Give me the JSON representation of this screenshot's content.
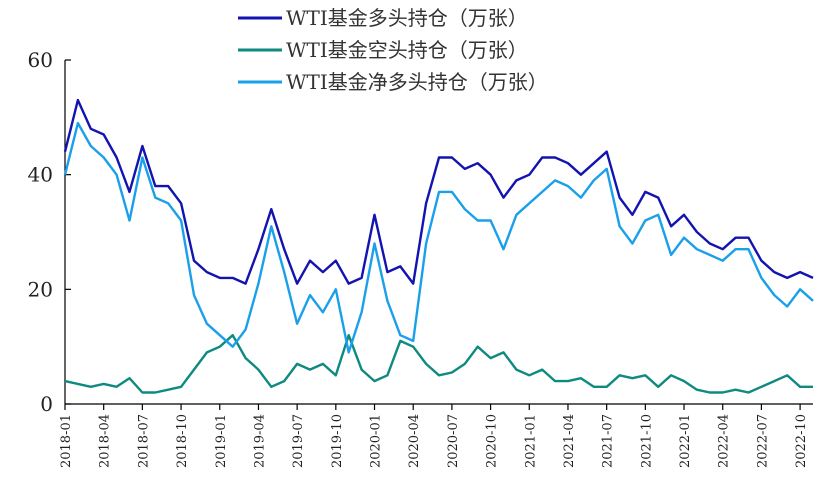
{
  "chart_data": {
    "type": "line",
    "title": "",
    "xlabel": "",
    "ylabel": "",
    "ylim": [
      0,
      60
    ],
    "yticks": [
      0,
      20,
      40,
      60
    ],
    "xlim": [
      "2018-01",
      "2022-11"
    ],
    "xticks": [
      "2018-01",
      "2018-04",
      "2018-07",
      "2018-10",
      "2019-01",
      "2019-04",
      "2019-07",
      "2019-10",
      "2020-01",
      "2020-04",
      "2020-07",
      "2020-10",
      "2021-01",
      "2021-04",
      "2021-07",
      "2021-10",
      "2022-01",
      "2022-04",
      "2022-07",
      "2022-10"
    ],
    "legend_position": "top-center",
    "grid": false,
    "series": [
      {
        "name": "WTI基金多头持仓（万张）",
        "color": "#1313b0",
        "points": [
          [
            "2018-01",
            44
          ],
          [
            "2018-02",
            53
          ],
          [
            "2018-03",
            48
          ],
          [
            "2018-04",
            47
          ],
          [
            "2018-05",
            43
          ],
          [
            "2018-06",
            37
          ],
          [
            "2018-07",
            45
          ],
          [
            "2018-08",
            38
          ],
          [
            "2018-09",
            38
          ],
          [
            "2018-10",
            35
          ],
          [
            "2018-11",
            25
          ],
          [
            "2018-12",
            23
          ],
          [
            "2019-01",
            22
          ],
          [
            "2019-02",
            22
          ],
          [
            "2019-03",
            21
          ],
          [
            "2019-04",
            27
          ],
          [
            "2019-05",
            34
          ],
          [
            "2019-06",
            27
          ],
          [
            "2019-07",
            21
          ],
          [
            "2019-08",
            25
          ],
          [
            "2019-09",
            23
          ],
          [
            "2019-10",
            25
          ],
          [
            "2019-11",
            21
          ],
          [
            "2019-12",
            22
          ],
          [
            "2020-01",
            33
          ],
          [
            "2020-02",
            23
          ],
          [
            "2020-03",
            24
          ],
          [
            "2020-04",
            21
          ],
          [
            "2020-05",
            35
          ],
          [
            "2020-06",
            43
          ],
          [
            "2020-07",
            43
          ],
          [
            "2020-08",
            41
          ],
          [
            "2020-09",
            42
          ],
          [
            "2020-10",
            40
          ],
          [
            "2020-11",
            36
          ],
          [
            "2020-12",
            39
          ],
          [
            "2021-01",
            40
          ],
          [
            "2021-02",
            43
          ],
          [
            "2021-03",
            43
          ],
          [
            "2021-04",
            42
          ],
          [
            "2021-05",
            40
          ],
          [
            "2021-06",
            42
          ],
          [
            "2021-07",
            44
          ],
          [
            "2021-08",
            36
          ],
          [
            "2021-09",
            33
          ],
          [
            "2021-10",
            37
          ],
          [
            "2021-11",
            36
          ],
          [
            "2021-12",
            31
          ],
          [
            "2022-01",
            33
          ],
          [
            "2022-02",
            30
          ],
          [
            "2022-03",
            28
          ],
          [
            "2022-04",
            27
          ],
          [
            "2022-05",
            29
          ],
          [
            "2022-06",
            29
          ],
          [
            "2022-07",
            25
          ],
          [
            "2022-08",
            23
          ],
          [
            "2022-09",
            22
          ],
          [
            "2022-10",
            23
          ],
          [
            "2022-11",
            22
          ]
        ]
      },
      {
        "name": "WTI基金空头持仓（万张）",
        "color": "#0f8a80",
        "points": [
          [
            "2018-01",
            4
          ],
          [
            "2018-02",
            3.5
          ],
          [
            "2018-03",
            3
          ],
          [
            "2018-04",
            3.5
          ],
          [
            "2018-05",
            3
          ],
          [
            "2018-06",
            4.5
          ],
          [
            "2018-07",
            2
          ],
          [
            "2018-08",
            2
          ],
          [
            "2018-09",
            2.5
          ],
          [
            "2018-10",
            3
          ],
          [
            "2018-11",
            6
          ],
          [
            "2018-12",
            9
          ],
          [
            "2019-01",
            10
          ],
          [
            "2019-02",
            12
          ],
          [
            "2019-03",
            8
          ],
          [
            "2019-04",
            6
          ],
          [
            "2019-05",
            3
          ],
          [
            "2019-06",
            4
          ],
          [
            "2019-07",
            7
          ],
          [
            "2019-08",
            6
          ],
          [
            "2019-09",
            7
          ],
          [
            "2019-10",
            5
          ],
          [
            "2019-11",
            12
          ],
          [
            "2019-12",
            6
          ],
          [
            "2020-01",
            4
          ],
          [
            "2020-02",
            5
          ],
          [
            "2020-03",
            11
          ],
          [
            "2020-04",
            10
          ],
          [
            "2020-05",
            7
          ],
          [
            "2020-06",
            5
          ],
          [
            "2020-07",
            5.5
          ],
          [
            "2020-08",
            7
          ],
          [
            "2020-09",
            10
          ],
          [
            "2020-10",
            8
          ],
          [
            "2020-11",
            9
          ],
          [
            "2020-12",
            6
          ],
          [
            "2021-01",
            5
          ],
          [
            "2021-02",
            6
          ],
          [
            "2021-03",
            4
          ],
          [
            "2021-04",
            4
          ],
          [
            "2021-05",
            4.5
          ],
          [
            "2021-06",
            3
          ],
          [
            "2021-07",
            3
          ],
          [
            "2021-08",
            5
          ],
          [
            "2021-09",
            4.5
          ],
          [
            "2021-10",
            5
          ],
          [
            "2021-11",
            3
          ],
          [
            "2021-12",
            5
          ],
          [
            "2022-01",
            4
          ],
          [
            "2022-02",
            2.5
          ],
          [
            "2022-03",
            2
          ],
          [
            "2022-04",
            2
          ],
          [
            "2022-05",
            2.5
          ],
          [
            "2022-06",
            2
          ],
          [
            "2022-07",
            3
          ],
          [
            "2022-08",
            4
          ],
          [
            "2022-09",
            5
          ],
          [
            "2022-10",
            3
          ],
          [
            "2022-11",
            3
          ]
        ]
      },
      {
        "name": "WTI基金净多头持仓（万张）",
        "color": "#1aa0ea",
        "points": [
          [
            "2018-01",
            40
          ],
          [
            "2018-02",
            49
          ],
          [
            "2018-03",
            45
          ],
          [
            "2018-04",
            43
          ],
          [
            "2018-05",
            40
          ],
          [
            "2018-06",
            32
          ],
          [
            "2018-07",
            43
          ],
          [
            "2018-08",
            36
          ],
          [
            "2018-09",
            35
          ],
          [
            "2018-10",
            32
          ],
          [
            "2018-11",
            19
          ],
          [
            "2018-12",
            14
          ],
          [
            "2019-01",
            12
          ],
          [
            "2019-02",
            10
          ],
          [
            "2019-03",
            13
          ],
          [
            "2019-04",
            21
          ],
          [
            "2019-05",
            31
          ],
          [
            "2019-06",
            23
          ],
          [
            "2019-07",
            14
          ],
          [
            "2019-08",
            19
          ],
          [
            "2019-09",
            16
          ],
          [
            "2019-10",
            20
          ],
          [
            "2019-11",
            9
          ],
          [
            "2019-12",
            16
          ],
          [
            "2020-01",
            28
          ],
          [
            "2020-02",
            18
          ],
          [
            "2020-03",
            12
          ],
          [
            "2020-04",
            11
          ],
          [
            "2020-05",
            28
          ],
          [
            "2020-06",
            37
          ],
          [
            "2020-07",
            37
          ],
          [
            "2020-08",
            34
          ],
          [
            "2020-09",
            32
          ],
          [
            "2020-10",
            32
          ],
          [
            "2020-11",
            27
          ],
          [
            "2020-12",
            33
          ],
          [
            "2021-01",
            35
          ],
          [
            "2021-02",
            37
          ],
          [
            "2021-03",
            39
          ],
          [
            "2021-04",
            38
          ],
          [
            "2021-05",
            36
          ],
          [
            "2021-06",
            39
          ],
          [
            "2021-07",
            41
          ],
          [
            "2021-08",
            31
          ],
          [
            "2021-09",
            28
          ],
          [
            "2021-10",
            32
          ],
          [
            "2021-11",
            33
          ],
          [
            "2021-12",
            26
          ],
          [
            "2022-01",
            29
          ],
          [
            "2022-02",
            27
          ],
          [
            "2022-03",
            26
          ],
          [
            "2022-04",
            25
          ],
          [
            "2022-05",
            27
          ],
          [
            "2022-06",
            27
          ],
          [
            "2022-07",
            22
          ],
          [
            "2022-08",
            19
          ],
          [
            "2022-09",
            17
          ],
          [
            "2022-10",
            20
          ],
          [
            "2022-11",
            18
          ]
        ]
      }
    ]
  }
}
